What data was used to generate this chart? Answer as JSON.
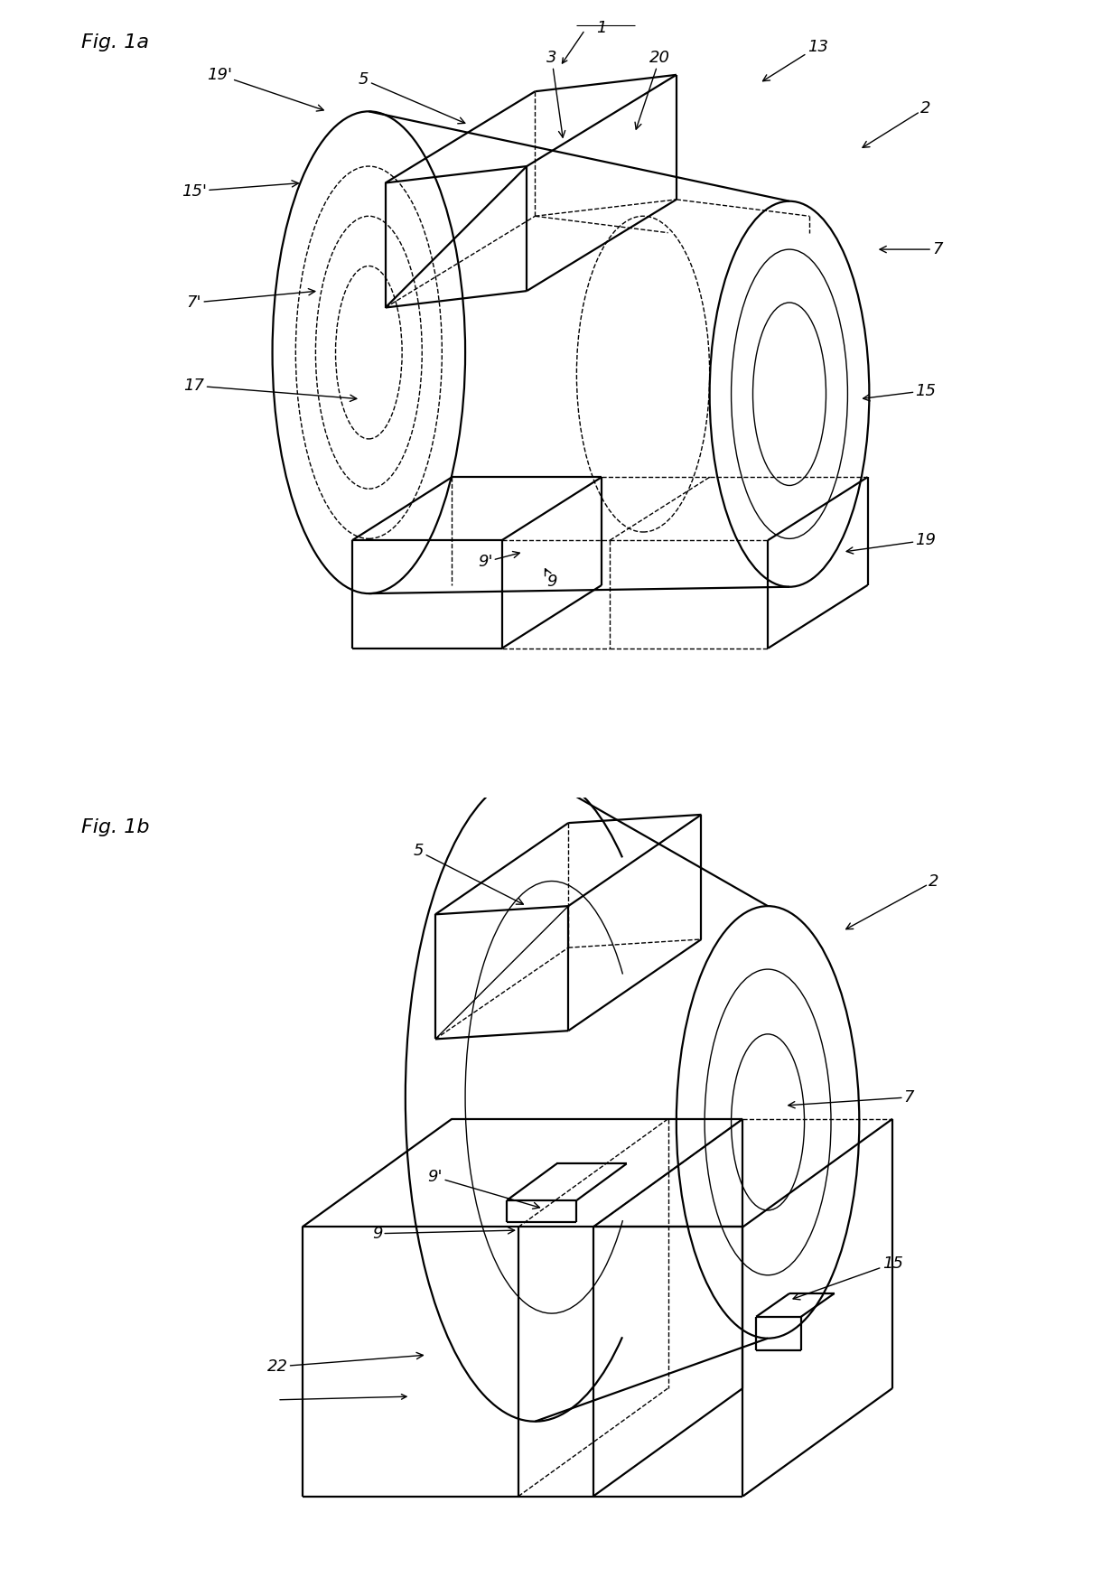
{
  "fig_title_1a": "Fig. 1a",
  "fig_title_1b": "Fig. 1b",
  "bg": "#ffffff",
  "lc": "#000000",
  "lw": 1.6,
  "lw_thin": 1.0,
  "fs_title": 16,
  "fs_label": 13
}
